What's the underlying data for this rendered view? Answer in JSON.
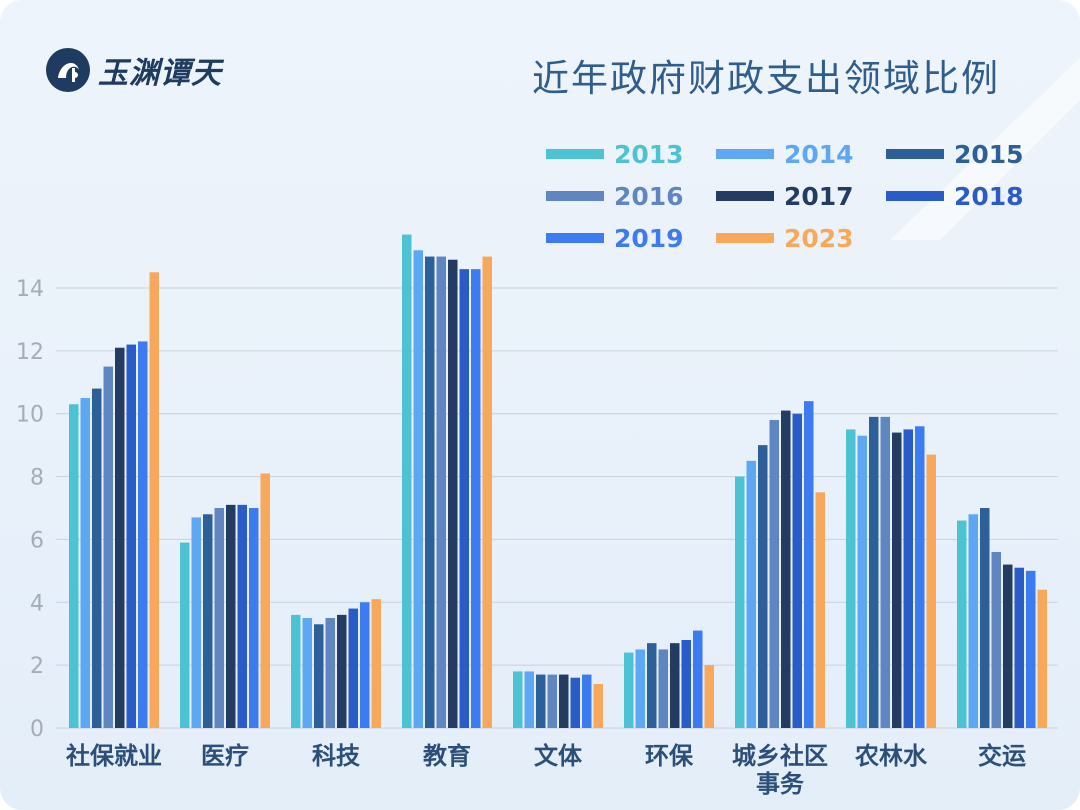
{
  "logo": {
    "text": "玉渊谭天"
  },
  "title": "近年政府财政支出领域比例",
  "colors": {
    "2013": "#4cc2d2",
    "2014": "#5ea7f2",
    "2015": "#2d5f99",
    "2016": "#5f86c0",
    "2017": "#253c62",
    "2018": "#2a5cc8",
    "2019": "#3d7bf0",
    "2023": "#f8a85a"
  },
  "chart_data": {
    "type": "bar",
    "title": "近年政府财政支出领域比例",
    "xlabel": "",
    "ylabel": "",
    "ylim": [
      0,
      15.4
    ],
    "yticks": [
      0,
      2,
      4,
      6,
      8,
      10,
      12,
      14
    ],
    "grid": true,
    "legend_position": "top-right",
    "categories": [
      "社保就业",
      "医疗",
      "科技",
      "教育",
      "文体",
      "环保",
      "城乡社区事务",
      "农林水",
      "交运"
    ],
    "category_lines": [
      [
        "社保就业"
      ],
      [
        "医疗"
      ],
      [
        "科技"
      ],
      [
        "教育"
      ],
      [
        "文体"
      ],
      [
        "环保"
      ],
      [
        "城乡社区",
        "事务"
      ],
      [
        "农林水"
      ],
      [
        "交运"
      ]
    ],
    "series": [
      {
        "name": "2013",
        "values": [
          10.3,
          5.9,
          3.6,
          15.7,
          1.8,
          2.4,
          8.0,
          9.5,
          6.6
        ]
      },
      {
        "name": "2014",
        "values": [
          10.5,
          6.7,
          3.5,
          15.2,
          1.8,
          2.5,
          8.5,
          9.3,
          6.8
        ]
      },
      {
        "name": "2015",
        "values": [
          10.8,
          6.8,
          3.3,
          15.0,
          1.7,
          2.7,
          9.0,
          9.9,
          7.0
        ]
      },
      {
        "name": "2016",
        "values": [
          11.5,
          7.0,
          3.5,
          15.0,
          1.7,
          2.5,
          9.8,
          9.9,
          5.6
        ]
      },
      {
        "name": "2017",
        "values": [
          12.1,
          7.1,
          3.6,
          14.9,
          1.7,
          2.7,
          10.1,
          9.4,
          5.2
        ]
      },
      {
        "name": "2018",
        "values": [
          12.2,
          7.1,
          3.8,
          14.6,
          1.6,
          2.8,
          10.0,
          9.5,
          5.1
        ]
      },
      {
        "name": "2019",
        "values": [
          12.3,
          7.0,
          4.0,
          14.6,
          1.7,
          3.1,
          10.4,
          9.6,
          5.0
        ]
      },
      {
        "name": "2023",
        "values": [
          14.5,
          8.1,
          4.1,
          15.0,
          1.4,
          2.0,
          7.5,
          8.7,
          4.4
        ]
      }
    ]
  }
}
